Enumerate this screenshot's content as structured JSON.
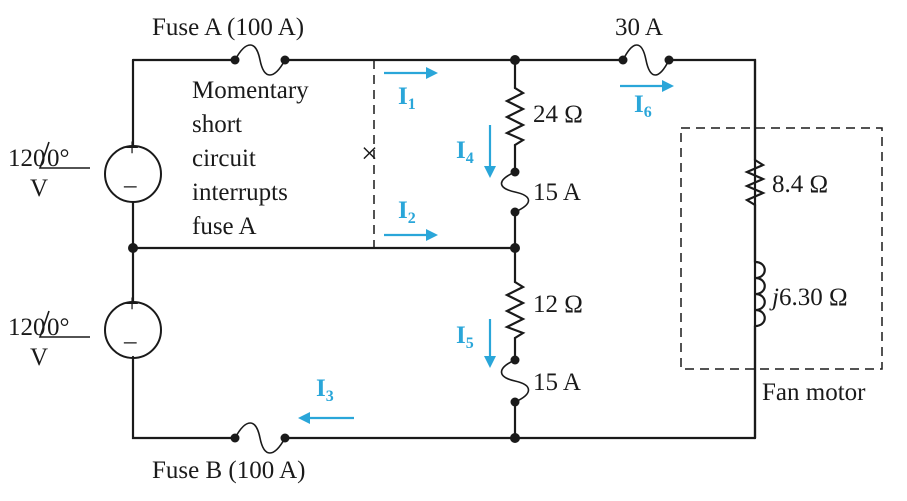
{
  "labels": {
    "fuse_a": "Fuse A (100 A)",
    "fuse_b": "Fuse B (100 A)",
    "fuse_top_right": "30 A",
    "fuse_mid_1": "15 A",
    "fuse_mid_2": "15 A",
    "source_top_mag": "120",
    "source_top_ang": "0°",
    "source_top_unit": "V",
    "source_bot_mag": "120",
    "source_bot_ang": "0°",
    "source_bot_unit": "V",
    "plus": "+",
    "minus": "–",
    "r_24": "24 Ω",
    "r_12": "12 Ω",
    "r_84": "8.4 Ω",
    "l_prefix": "j",
    "l_value": "6.30 Ω",
    "fan_motor": "Fan motor",
    "note_line1": "Momentary",
    "note_line2": "short",
    "note_line3": "circuit",
    "note_line4": "interrupts",
    "note_line5": "fuse A",
    "short_mark": "×"
  },
  "currents": {
    "i1": {
      "sym": "I",
      "sub": "1"
    },
    "i2": {
      "sym": "I",
      "sub": "2"
    },
    "i3": {
      "sym": "I",
      "sub": "3"
    },
    "i4": {
      "sym": "I",
      "sub": "4"
    },
    "i5": {
      "sym": "I",
      "sub": "5"
    },
    "i6": {
      "sym": "I",
      "sub": "6"
    }
  },
  "colors": {
    "wire": "#1a1a1a",
    "current_arrow": "#2aa6d9"
  }
}
